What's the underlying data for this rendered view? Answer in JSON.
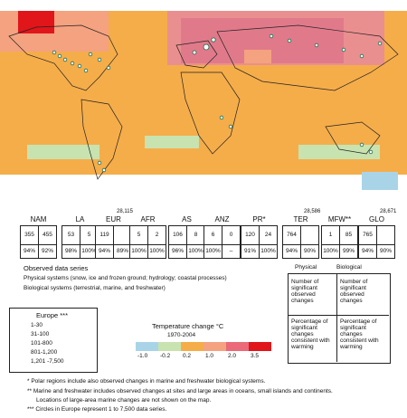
{
  "regions": [
    {
      "name": "NAM",
      "physical": "355",
      "biological": "455",
      "phys_pct": "94%",
      "bio_pct": "92%"
    },
    {
      "name": "LA",
      "physical": "53",
      "biological": "5",
      "phys_pct": "98%",
      "bio_pct": "100%"
    },
    {
      "name": "EUR",
      "physical": "119",
      "biological": "",
      "phys_pct": "94%",
      "bio_pct": "89%",
      "callout": "28,115"
    },
    {
      "name": "AFR",
      "physical": "5",
      "biological": "2",
      "phys_pct": "100%",
      "bio_pct": "100%"
    },
    {
      "name": "AS",
      "physical": "106",
      "biological": "8",
      "phys_pct": "96%",
      "bio_pct": "100%"
    },
    {
      "name": "ANZ",
      "physical": "6",
      "biological": "0",
      "phys_pct": "100%",
      "bio_pct": "–"
    },
    {
      "name": "PR*",
      "physical": "120",
      "biological": "24",
      "phys_pct": "91%",
      "bio_pct": "100%"
    },
    {
      "name": "TER",
      "physical": "764",
      "biological": "",
      "phys_pct": "94%",
      "bio_pct": "90%",
      "callout": "28,586"
    },
    {
      "name": "MFW**",
      "physical": "1",
      "biological": "85",
      "phys_pct": "100%",
      "bio_pct": "99%"
    },
    {
      "name": "GLO",
      "physical": "765",
      "biological": "",
      "phys_pct": "94%",
      "bio_pct": "90%",
      "callout": "28,671"
    }
  ],
  "observed": {
    "title": "Observed data series",
    "physical": "Physical systems (snow, ice and frozen ground; hydrology; coastal processes)",
    "biological": "Biological systems (terrestrial, marine, and freshwater)"
  },
  "key_table": {
    "physical_header": "Physical",
    "biological_header": "Biological",
    "row1": "Number of significant observed changes",
    "row2": "Percentage of significant changes consistent with warming"
  },
  "europe": {
    "title": "Europe ***",
    "items": [
      "1-30",
      "31-100",
      "101-800",
      "801-1,200",
      "1,201 -7,500"
    ]
  },
  "temperature": {
    "title": "Temperature change °C",
    "period": "1970-2004",
    "ticks": [
      "-1.0",
      "-0.2",
      "0.2",
      "1.0",
      "2.0",
      "3.5"
    ],
    "colors": [
      "#a9d4e8",
      "#c8e3b0",
      "#f5ad4a",
      "#f4a280",
      "#ea6a79",
      "#e0161a"
    ]
  },
  "footnotes": {
    "f1": "* Polar regions include also observed changes in marine and freshwater biological systems.",
    "f2": "** Marine and freshwater includes observed changes at sites and large areas in oceans, small islands and continents.",
    "f2b": "Locations of large-area marine changes are not shown on the map.",
    "f3": "*** Circles in Europe represent 1 to 7,500 data series."
  }
}
